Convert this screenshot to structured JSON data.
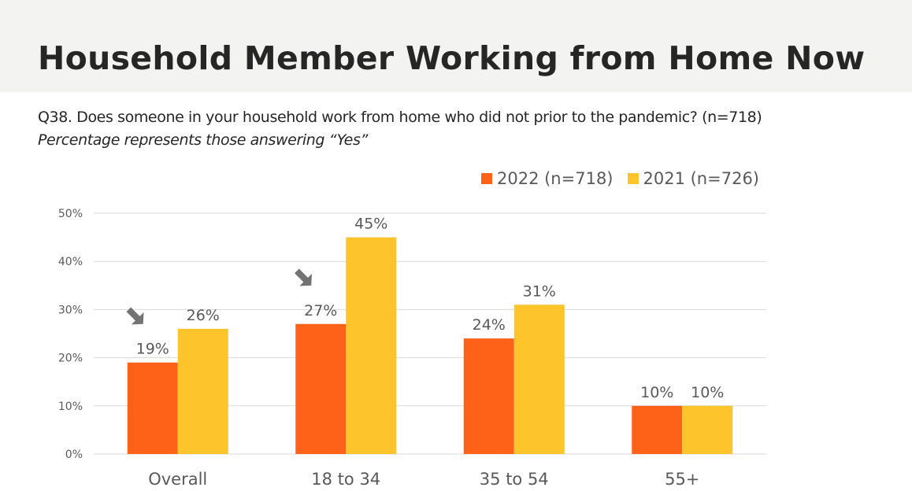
{
  "header": {
    "title": "Household Member Working from Home Now",
    "question": "Q38. Does someone in your household work from home who did not prior to the pandemic? (n=718)",
    "note": "Percentage represents those answering “Yes”"
  },
  "colors": {
    "series_2022": "#fe6219",
    "series_2021": "#fec42b",
    "gridline": "#d9d9d9",
    "axis_text": "#595959",
    "arrow": "#737373"
  },
  "chart_data": {
    "type": "bar",
    "categories": [
      "Overall",
      "18 to 34",
      "35 to 54",
      "55+"
    ],
    "series": [
      {
        "name": "2022 (n=718)",
        "values": [
          19,
          27,
          24,
          10
        ],
        "labels": [
          "19%",
          "27%",
          "24%",
          "10%"
        ]
      },
      {
        "name": "2021 (n=726)",
        "values": [
          26,
          45,
          31,
          10
        ],
        "labels": [
          "26%",
          "45%",
          "31%",
          "10%"
        ]
      }
    ],
    "yticks": [
      "0%",
      "10%",
      "20%",
      "30%",
      "40%",
      "50%"
    ],
    "ylim": [
      0,
      50
    ],
    "grid": true,
    "legend_position": "top-right",
    "annotations": [
      {
        "type": "arrow-icon",
        "category": "Overall",
        "series": "2022 (n=718)"
      },
      {
        "type": "arrow-icon",
        "category": "18 to 34",
        "series": "2022 (n=718)"
      }
    ]
  }
}
